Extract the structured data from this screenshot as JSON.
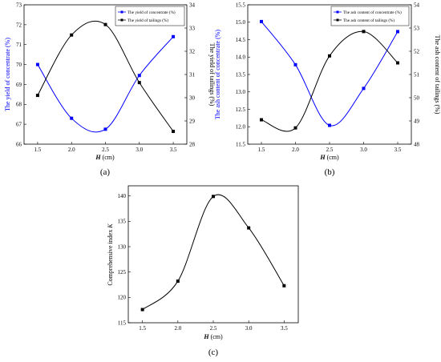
{
  "chart_data": [
    {
      "type": "line",
      "caption": "(a)",
      "x": [
        1.5,
        2.0,
        2.5,
        3.0,
        3.5
      ],
      "xlabel_var": "H",
      "xlabel_unit": "(cm)",
      "xlim": [
        1.3,
        3.7
      ],
      "xticks": [
        "1.5",
        "2.0",
        "2.5",
        "3.0",
        "3.5"
      ],
      "ylabel_left": "The yield of concentrate (%)",
      "ylabel_right": "The yield of tailings (%)",
      "ylim_left": [
        66,
        73
      ],
      "ylim_right": [
        28,
        34
      ],
      "yticks_left": [
        "66",
        "67",
        "68",
        "69",
        "70",
        "71",
        "72",
        "73"
      ],
      "yticks_right": [
        "28",
        "29",
        "30",
        "31",
        "32",
        "33",
        "34"
      ],
      "legend_position": "top-right",
      "series": [
        {
          "name": "The yield of concentrate (%)",
          "axis": "left",
          "color": "#0000ff",
          "values": [
            70.0,
            67.3,
            66.75,
            69.45,
            71.4
          ]
        },
        {
          "name": "The yield of tailings (%)",
          "axis": "right",
          "color": "#000000",
          "values": [
            30.1,
            32.7,
            33.15,
            30.65,
            28.55
          ]
        }
      ]
    },
    {
      "type": "line",
      "caption": "(b)",
      "x": [
        1.5,
        2.0,
        2.5,
        3.0,
        3.5
      ],
      "xlabel_var": "H",
      "xlabel_unit": "(cm)",
      "xlim": [
        1.3,
        3.7
      ],
      "xticks": [
        "1.5",
        "2.0",
        "2.5",
        "3.0",
        "3.5"
      ],
      "ylabel_left": "The ash content of concentrate (%)",
      "ylabel_right": "The ash content of tailings (%)",
      "ylim_left": [
        11.5,
        15.5
      ],
      "ylim_right": [
        48,
        54
      ],
      "yticks_left": [
        "11.5",
        "12.0",
        "12.5",
        "13.0",
        "13.5",
        "14.0",
        "14.5",
        "15.0",
        "15.5"
      ],
      "yticks_right": [
        "48",
        "49",
        "50",
        "51",
        "52",
        "53",
        "54"
      ],
      "legend_position": "top-right",
      "series": [
        {
          "name": "The ash content of concentrate (%)",
          "axis": "left",
          "color": "#0000ff",
          "values": [
            15.02,
            13.78,
            12.04,
            13.1,
            14.73
          ]
        },
        {
          "name": "The ash content of tailings (%)",
          "axis": "right",
          "color": "#000000",
          "values": [
            49.05,
            48.7,
            51.8,
            52.85,
            51.5
          ]
        }
      ]
    },
    {
      "type": "line",
      "caption": "(c)",
      "x": [
        1.5,
        2.0,
        2.5,
        3.0,
        3.5
      ],
      "xlabel_var": "H",
      "xlabel_unit": "(cm)",
      "xlim": [
        1.3,
        3.7
      ],
      "xticks": [
        "1.5",
        "2.0",
        "2.5",
        "3.0",
        "3.5"
      ],
      "ylabel_text": "Comprehensive index ",
      "ylabel_var": "K",
      "ylim": [
        115,
        142
      ],
      "yticks": [
        "115",
        "120",
        "125",
        "130",
        "135",
        "140"
      ],
      "series": [
        {
          "color": "#000000",
          "values": [
            117.6,
            123.2,
            139.9,
            133.7,
            122.3
          ]
        }
      ]
    }
  ]
}
